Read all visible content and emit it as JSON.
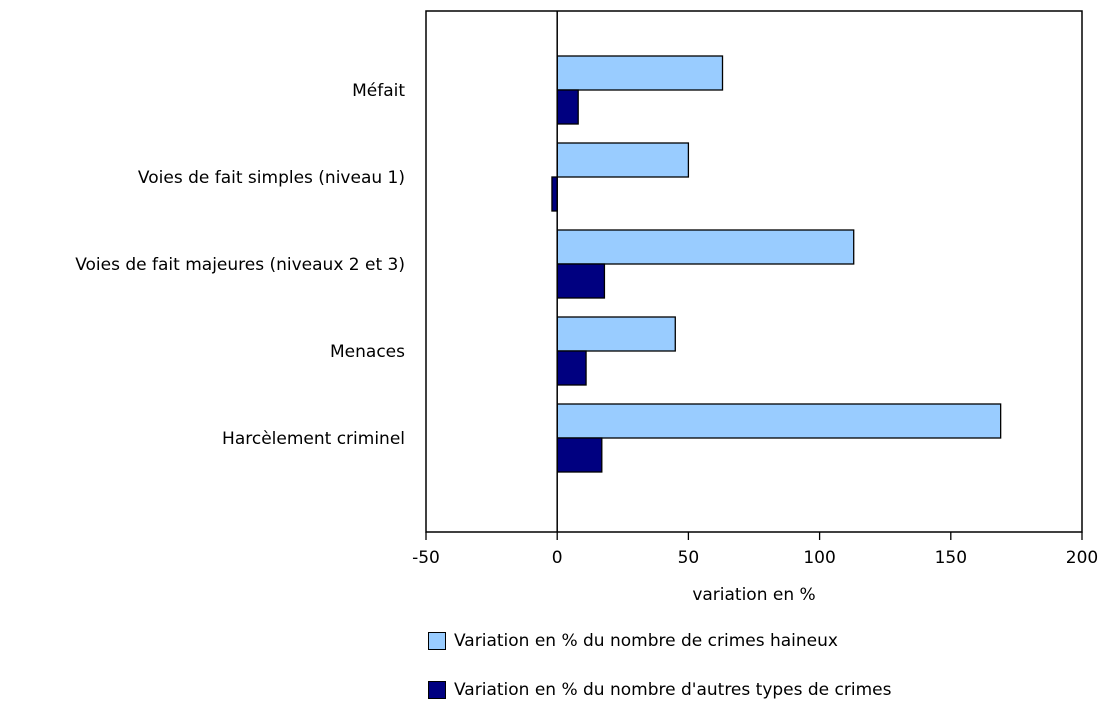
{
  "chart_data": {
    "type": "bar",
    "orientation": "horizontal",
    "categories": [
      "Méfait",
      "Voies de fait simples (niveau 1)",
      "Voies de fait majeures (niveaux 2 et 3)",
      "Menaces",
      "Harcèlement criminel"
    ],
    "series": [
      {
        "name": "Variation en % du nombre de crimes haineux",
        "color": "#99ccff",
        "values": [
          63,
          50,
          113,
          45,
          169
        ]
      },
      {
        "name": "Variation en % du nombre d'autres types de crimes",
        "color": "#000080",
        "values": [
          8,
          -2,
          18,
          11,
          17
        ]
      }
    ],
    "xlabel": "variation en %",
    "xlim": [
      -50,
      200
    ],
    "xticks": [
      -50,
      0,
      50,
      100,
      150,
      200
    ],
    "grid": false,
    "legend_position": "bottom"
  }
}
